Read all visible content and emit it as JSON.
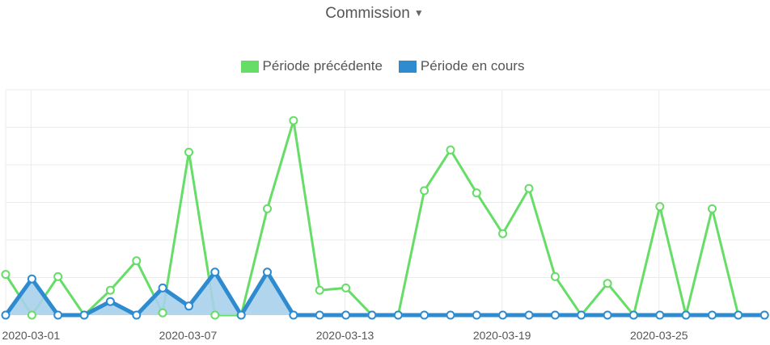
{
  "header": {
    "metric_label": "Commission"
  },
  "chart_data": {
    "type": "line",
    "x_tick_labels": [
      "2020-03-01",
      "2020-03-07",
      "2020-03-13",
      "2020-03-19",
      "2020-03-25"
    ],
    "x_tick_indices": [
      1,
      7,
      13,
      19,
      25
    ],
    "ylim": [
      0,
      100
    ],
    "grid": true,
    "legend_position": "top",
    "series": [
      {
        "name": "Période précédente",
        "color": "#66dd66",
        "fill": false,
        "values": [
          18,
          0,
          17,
          0,
          11,
          24,
          1,
          72,
          0,
          0,
          47,
          86,
          11,
          12,
          0,
          0,
          55,
          73,
          54,
          36,
          56,
          17,
          0,
          14,
          0,
          48,
          0,
          47,
          0,
          0
        ]
      },
      {
        "name": "Période en cours",
        "color": "#2e8bd0",
        "fill": true,
        "values": [
          0,
          16,
          0,
          0,
          6,
          0,
          12,
          4,
          19,
          0,
          19,
          0,
          0,
          0,
          0,
          0,
          0,
          0,
          0,
          0,
          0,
          0,
          0,
          0,
          0,
          0,
          0,
          0,
          0,
          0
        ]
      }
    ]
  }
}
